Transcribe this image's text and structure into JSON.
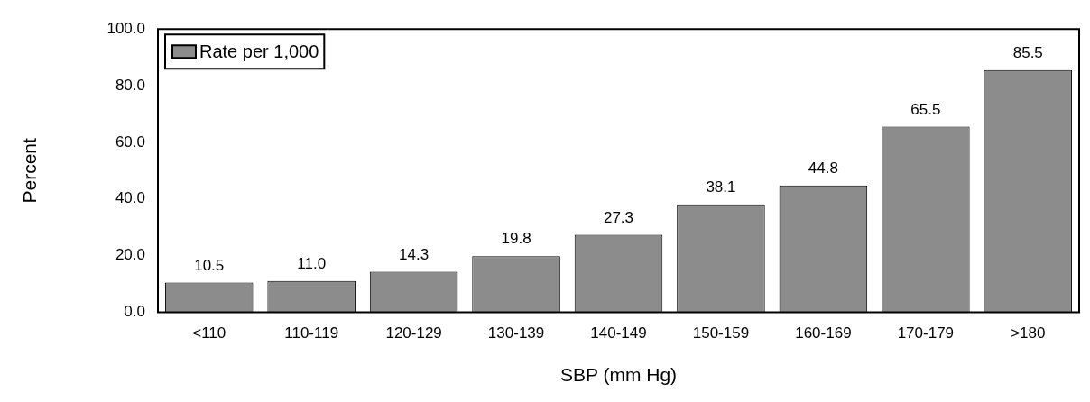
{
  "chart_data": {
    "type": "bar",
    "xlabel": "SBP (mm Hg)",
    "ylabel": "Percent",
    "categories": [
      "<110",
      "110-119",
      "120-129",
      "130-139",
      "140-149",
      "150-159",
      "160-169",
      "170-179",
      ">180"
    ],
    "series": [
      {
        "name": "Rate per 1,000",
        "color": "#8c8c8c",
        "values": [
          10.5,
          11.0,
          14.3,
          19.8,
          27.3,
          38.1,
          44.8,
          65.5,
          85.5
        ],
        "value_labels": [
          "10.5",
          "11.0",
          "14.3",
          "19.8",
          "27.3",
          "38.1",
          "44.8",
          "65.5",
          "85.5"
        ]
      }
    ],
    "ylim": [
      0,
      100
    ],
    "yticks": [
      {
        "value": 0,
        "label": "0.0"
      },
      {
        "value": 20,
        "label": "20.0"
      },
      {
        "value": 40,
        "label": "40.0"
      },
      {
        "value": 60,
        "label": "60.0"
      },
      {
        "value": 80,
        "label": "80.0"
      },
      {
        "value": 100,
        "label": "100.0"
      }
    ],
    "legend": "top left",
    "grid": false
  }
}
